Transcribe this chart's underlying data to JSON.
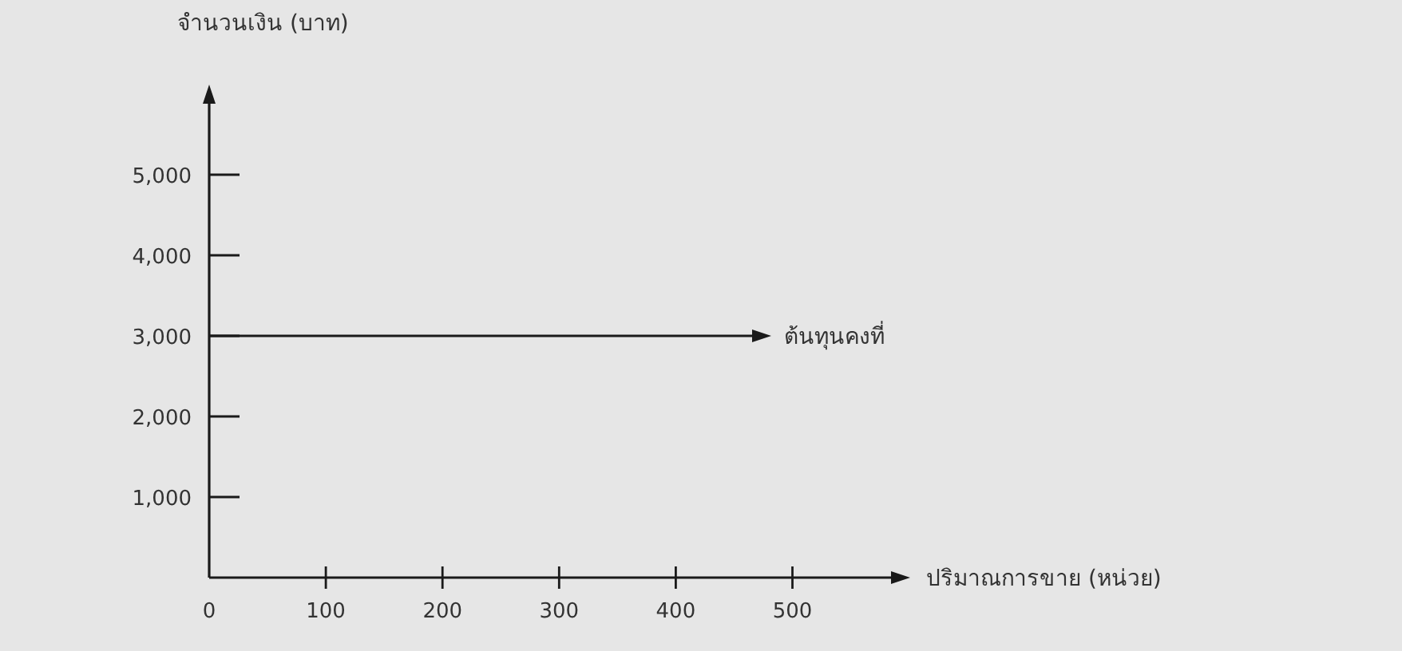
{
  "chart_data": {
    "type": "line",
    "xlabel": "ปริมาณการขาย (หน่วย)",
    "ylabel": "จำนวนเงิน (บาท)",
    "xlim": [
      0,
      590
    ],
    "ylim": [
      0,
      6000
    ],
    "xticks": [
      0,
      100,
      200,
      300,
      400,
      500
    ],
    "yticks": [
      {
        "value": 1000,
        "label": "1,000"
      },
      {
        "value": 2000,
        "label": "2,000"
      },
      {
        "value": 3000,
        "label": "3,000"
      },
      {
        "value": 4000,
        "label": "4,000"
      },
      {
        "value": 5000,
        "label": "5,000"
      }
    ],
    "ref_lines": [
      {
        "axis": "y",
        "value": 3000,
        "label": "ต้นทุนคงที่",
        "color": "#1a1a1a"
      }
    ],
    "grid": false
  }
}
